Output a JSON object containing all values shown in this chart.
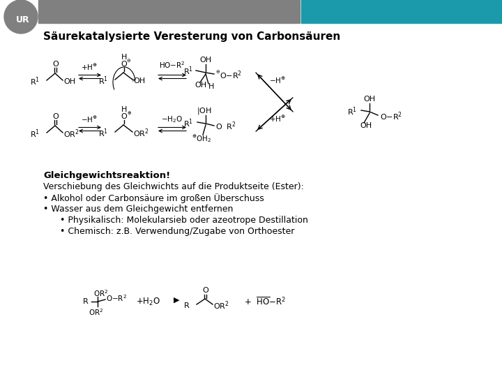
{
  "header_gray_color": "#808080",
  "header_teal_color": "#1a9aaa",
  "logo_color": "#808080",
  "title": "Säurekatalysierte Veresterung von Carbonsäuren",
  "bold_line": "Gleichgewichtsreaktion!",
  "normal_lines": [
    "Verschiebung des Gleichwichts auf die Produktseite (Ester):",
    "• Alkohol oder Carbonsäure im großen Überschuss",
    "• Wasser aus dem Gleichgewicht entfernen",
    "      • Physikalisch: Molekularsieb oder azeotrope Destillation",
    "      • Chemisch: z.B. Verwendung/Zugabe von Orthoester"
  ],
  "bg_color": "#ffffff",
  "text_color": "#000000"
}
